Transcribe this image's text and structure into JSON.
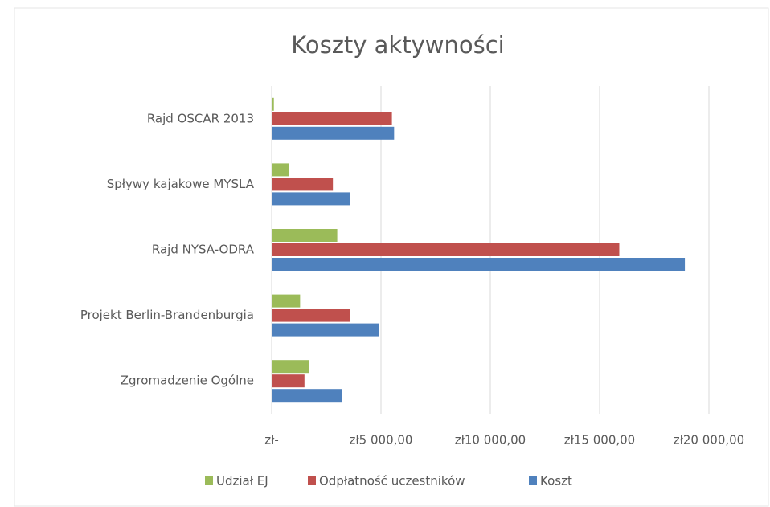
{
  "chart_data": {
    "type": "bar",
    "orientation": "horizontal",
    "title": "Koszty aktywności",
    "categories": [
      "Rajd OSCAR 2013",
      "Spływy kajakowe MYSLA",
      "Rajd NYSA-ODRA",
      "Projekt Berlin-Brandenburgia",
      "Zgromadzenie Ogólne"
    ],
    "series": [
      {
        "name": "Udział EJ",
        "color": "#9bbb59",
        "values": [
          100,
          800,
          3000,
          1300,
          1700
        ]
      },
      {
        "name": "Odpłatność uczestników",
        "color": "#c0504d",
        "values": [
          5500,
          2800,
          15900,
          3600,
          1500
        ]
      },
      {
        "name": "Koszt",
        "color": "#4f81bd",
        "values": [
          5600,
          3600,
          18900,
          4900,
          3200
        ]
      }
    ],
    "xlim": [
      0,
      20000
    ],
    "xticks": [
      {
        "value": 0,
        "label": "zł-"
      },
      {
        "value": 5000,
        "label": "zł5 000,00"
      },
      {
        "value": 10000,
        "label": "zł10 000,00"
      },
      {
        "value": 15000,
        "label": "zł15 000,00"
      },
      {
        "value": 20000,
        "label": "zł20 000,00"
      }
    ],
    "grid": true,
    "legend": "bottom"
  }
}
